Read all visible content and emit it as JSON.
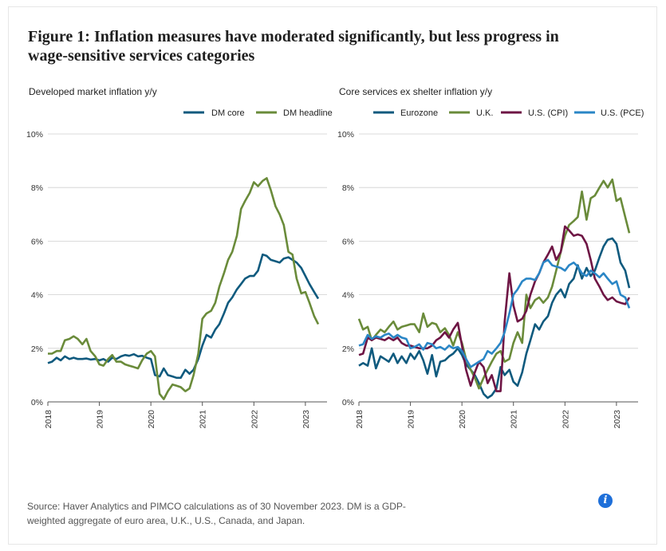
{
  "figure": {
    "title": "Figure 1: Inflation measures have moderated significantly, but less progress in wage-sensitive services categories",
    "source": "Source: Haver Analytics and PIMCO calculations as of 30 November 2023. DM is a GDP-weighted aggregate of euro area, U.K., U.S., Canada, and Japan.",
    "info_icon": "info-icon",
    "info_glyph": "i"
  },
  "chart_data": [
    {
      "type": "line",
      "title": "Developed market inflation y/y",
      "ylim": [
        0,
        10
      ],
      "yticks": [
        0,
        2,
        4,
        6,
        8,
        10
      ],
      "ytick_labels": [
        "0%",
        "2%",
        "4%",
        "6%",
        "8%",
        "10%"
      ],
      "xticks": [
        2018,
        2019,
        2020,
        2021,
        2022,
        2023
      ],
      "xtick_labels": [
        "2018",
        "2019",
        "2020",
        "2021",
        "2022",
        "2023"
      ],
      "xlim": [
        2018,
        2023.42
      ],
      "grid": true,
      "legend": "top-right",
      "series": [
        {
          "name": "DM core",
          "color": "#0f5a7e",
          "x": [
            2018.0,
            2018.08,
            2018.17,
            2018.25,
            2018.33,
            2018.42,
            2018.5,
            2018.58,
            2018.67,
            2018.75,
            2018.83,
            2018.92,
            2019.0,
            2019.08,
            2019.17,
            2019.25,
            2019.33,
            2019.42,
            2019.5,
            2019.58,
            2019.67,
            2019.75,
            2019.83,
            2019.92,
            2020.0,
            2020.08,
            2020.17,
            2020.25,
            2020.33,
            2020.42,
            2020.5,
            2020.58,
            2020.67,
            2020.75,
            2020.83,
            2020.92,
            2021.0,
            2021.08,
            2021.17,
            2021.25,
            2021.33,
            2021.42,
            2021.5,
            2021.58,
            2021.67,
            2021.75,
            2021.83,
            2021.92,
            2022.0,
            2022.08,
            2022.17,
            2022.25,
            2022.33,
            2022.42,
            2022.5,
            2022.58,
            2022.67,
            2022.75,
            2022.83,
            2022.92,
            2023.0,
            2023.08,
            2023.17,
            2023.25
          ],
          "y": [
            1.45,
            1.5,
            1.65,
            1.55,
            1.7,
            1.6,
            1.65,
            1.6,
            1.6,
            1.62,
            1.58,
            1.6,
            1.55,
            1.6,
            1.5,
            1.65,
            1.6,
            1.7,
            1.75,
            1.72,
            1.78,
            1.7,
            1.72,
            1.65,
            1.6,
            1.0,
            0.95,
            1.25,
            1.0,
            0.95,
            0.9,
            0.9,
            1.2,
            1.05,
            1.2,
            1.6,
            2.1,
            2.5,
            2.4,
            2.7,
            2.9,
            3.3,
            3.7,
            3.9,
            4.2,
            4.4,
            4.6,
            4.7,
            4.7,
            4.9,
            5.5,
            5.45,
            5.3,
            5.25,
            5.2,
            5.35,
            5.4,
            5.3,
            5.2,
            5.0,
            4.7,
            4.4,
            4.1,
            3.85
          ]
        },
        {
          "name": "DM headline",
          "color": "#6a8b3a",
          "x": [
            2018.0,
            2018.08,
            2018.17,
            2018.25,
            2018.33,
            2018.42,
            2018.5,
            2018.58,
            2018.67,
            2018.75,
            2018.83,
            2018.92,
            2019.0,
            2019.08,
            2019.17,
            2019.25,
            2019.33,
            2019.42,
            2019.5,
            2019.58,
            2019.67,
            2019.75,
            2019.83,
            2019.92,
            2020.0,
            2020.08,
            2020.17,
            2020.25,
            2020.33,
            2020.42,
            2020.5,
            2020.58,
            2020.67,
            2020.75,
            2020.83,
            2020.92,
            2021.0,
            2021.08,
            2021.17,
            2021.25,
            2021.33,
            2021.42,
            2021.5,
            2021.58,
            2021.67,
            2021.75,
            2021.83,
            2021.92,
            2022.0,
            2022.08,
            2022.17,
            2022.25,
            2022.33,
            2022.42,
            2022.5,
            2022.58,
            2022.67,
            2022.75,
            2022.83,
            2022.92,
            2023.0,
            2023.08,
            2023.17,
            2023.25
          ],
          "y": [
            1.8,
            1.8,
            1.9,
            1.9,
            2.3,
            2.35,
            2.45,
            2.35,
            2.15,
            2.35,
            1.9,
            1.7,
            1.4,
            1.35,
            1.6,
            1.75,
            1.5,
            1.5,
            1.4,
            1.35,
            1.3,
            1.25,
            1.55,
            1.8,
            1.9,
            1.7,
            0.3,
            0.1,
            0.4,
            0.65,
            0.6,
            0.55,
            0.4,
            0.5,
            1.0,
            1.8,
            3.1,
            3.3,
            3.4,
            3.7,
            4.3,
            4.8,
            5.3,
            5.6,
            6.2,
            7.2,
            7.5,
            7.8,
            8.2,
            8.05,
            8.25,
            8.35,
            7.9,
            7.3,
            7.0,
            6.6,
            5.6,
            5.5,
            4.6,
            4.05,
            4.1,
            3.7,
            3.2,
            2.9
          ]
        }
      ]
    },
    {
      "type": "line",
      "title": "Core services ex shelter inflation y/y",
      "ylim": [
        0,
        10
      ],
      "yticks": [
        0,
        2,
        4,
        6,
        8,
        10
      ],
      "ytick_labels": [
        "0%",
        "2%",
        "4%",
        "6%",
        "8%",
        "10%"
      ],
      "xticks": [
        2018,
        2019,
        2020,
        2021,
        2022,
        2023
      ],
      "xtick_labels": [
        "2018",
        "2019",
        "2020",
        "2021",
        "2022",
        "2023"
      ],
      "xlim": [
        2018,
        2023.42
      ],
      "grid": true,
      "legend": "top-right",
      "series": [
        {
          "name": "Eurozone",
          "color": "#0f5a7e",
          "x": [
            2018.0,
            2018.08,
            2018.17,
            2018.25,
            2018.33,
            2018.42,
            2018.5,
            2018.58,
            2018.67,
            2018.75,
            2018.83,
            2018.92,
            2019.0,
            2019.08,
            2019.17,
            2019.25,
            2019.33,
            2019.42,
            2019.5,
            2019.58,
            2019.67,
            2019.75,
            2019.83,
            2019.92,
            2020.0,
            2020.08,
            2020.17,
            2020.25,
            2020.33,
            2020.42,
            2020.5,
            2020.58,
            2020.67,
            2020.75,
            2020.83,
            2020.92,
            2021.0,
            2021.08,
            2021.17,
            2021.25,
            2021.33,
            2021.42,
            2021.5,
            2021.58,
            2021.67,
            2021.75,
            2021.83,
            2021.92,
            2022.0,
            2022.08,
            2022.17,
            2022.25,
            2022.33,
            2022.42,
            2022.5,
            2022.58,
            2022.67,
            2022.75,
            2022.83,
            2022.92,
            2023.0,
            2023.08,
            2023.17,
            2023.25
          ],
          "y": [
            1.35,
            1.45,
            1.35,
            2.0,
            1.25,
            1.7,
            1.6,
            1.5,
            1.8,
            1.45,
            1.7,
            1.45,
            1.8,
            1.6,
            1.9,
            1.55,
            1.05,
            1.75,
            0.95,
            1.5,
            1.55,
            1.7,
            1.8,
            2.0,
            1.75,
            1.4,
            1.2,
            1.0,
            0.7,
            0.3,
            0.15,
            0.25,
            0.5,
            1.3,
            1.0,
            1.2,
            0.75,
            0.6,
            1.1,
            1.8,
            2.3,
            2.9,
            2.7,
            3.0,
            3.2,
            3.7,
            4.0,
            4.2,
            3.9,
            4.4,
            4.6,
            5.1,
            4.6,
            5.0,
            4.7,
            4.9,
            5.4,
            5.8,
            6.05,
            6.1,
            5.9,
            5.2,
            4.9,
            4.25
          ]
        },
        {
          "name": "U.K.",
          "color": "#6a8b3a",
          "x": [
            2018.0,
            2018.08,
            2018.17,
            2018.25,
            2018.33,
            2018.42,
            2018.5,
            2018.58,
            2018.67,
            2018.75,
            2018.83,
            2018.92,
            2019.0,
            2019.08,
            2019.17,
            2019.25,
            2019.33,
            2019.42,
            2019.5,
            2019.58,
            2019.67,
            2019.75,
            2019.83,
            2019.92,
            2020.0,
            2020.08,
            2020.17,
            2020.25,
            2020.33,
            2020.42,
            2020.5,
            2020.58,
            2020.67,
            2020.75,
            2020.83,
            2020.92,
            2021.0,
            2021.08,
            2021.17,
            2021.25,
            2021.33,
            2021.42,
            2021.5,
            2021.58,
            2021.67,
            2021.75,
            2021.83,
            2021.92,
            2022.0,
            2022.08,
            2022.17,
            2022.25,
            2022.33,
            2022.42,
            2022.5,
            2022.58,
            2022.67,
            2022.75,
            2022.83,
            2022.92,
            2023.0,
            2023.08,
            2023.17,
            2023.25
          ],
          "y": [
            3.1,
            2.7,
            2.8,
            2.3,
            2.5,
            2.7,
            2.6,
            2.8,
            3.0,
            2.7,
            2.8,
            2.85,
            2.9,
            2.9,
            2.6,
            3.3,
            2.8,
            2.95,
            2.9,
            2.6,
            2.75,
            2.5,
            2.1,
            2.6,
            2.2,
            1.6,
            1.2,
            0.9,
            0.5,
            0.9,
            1.2,
            1.5,
            1.8,
            1.9,
            1.5,
            1.6,
            2.2,
            2.6,
            2.2,
            4.0,
            3.5,
            3.8,
            3.9,
            3.7,
            3.9,
            4.3,
            4.9,
            5.6,
            6.2,
            6.6,
            6.75,
            6.9,
            7.85,
            6.8,
            7.6,
            7.7,
            8.0,
            8.25,
            8.0,
            8.3,
            7.5,
            7.6,
            6.9,
            6.3
          ]
        },
        {
          "name": "U.S. (CPI)",
          "color": "#6e1544",
          "x": [
            2018.0,
            2018.08,
            2018.17,
            2018.25,
            2018.33,
            2018.42,
            2018.5,
            2018.58,
            2018.67,
            2018.75,
            2018.83,
            2018.92,
            2019.0,
            2019.08,
            2019.17,
            2019.25,
            2019.33,
            2019.42,
            2019.5,
            2019.58,
            2019.67,
            2019.75,
            2019.83,
            2019.92,
            2020.0,
            2020.08,
            2020.17,
            2020.25,
            2020.33,
            2020.42,
            2020.5,
            2020.58,
            2020.67,
            2020.75,
            2020.83,
            2020.92,
            2021.0,
            2021.08,
            2021.17,
            2021.25,
            2021.33,
            2021.42,
            2021.5,
            2021.58,
            2021.67,
            2021.75,
            2021.83,
            2021.92,
            2022.0,
            2022.08,
            2022.17,
            2022.25,
            2022.33,
            2022.42,
            2022.5,
            2022.58,
            2022.67,
            2022.75,
            2022.83,
            2022.92,
            2023.0,
            2023.08,
            2023.17,
            2023.25
          ],
          "y": [
            1.75,
            1.8,
            2.4,
            2.3,
            2.4,
            2.35,
            2.3,
            2.4,
            2.3,
            2.4,
            2.2,
            2.1,
            2.1,
            2.05,
            2.0,
            2.0,
            2.0,
            2.1,
            2.3,
            2.4,
            2.6,
            2.4,
            2.7,
            2.95,
            2.1,
            1.2,
            0.6,
            1.1,
            1.5,
            1.3,
            0.7,
            1.0,
            0.4,
            0.4,
            3.0,
            4.8,
            3.6,
            3.0,
            3.1,
            3.4,
            4.0,
            4.5,
            4.8,
            5.2,
            5.5,
            5.8,
            5.3,
            5.6,
            6.55,
            6.4,
            6.2,
            6.25,
            6.2,
            5.9,
            5.3,
            4.6,
            4.3,
            4.0,
            3.8,
            3.9,
            3.75,
            3.7,
            3.65,
            3.9
          ]
        },
        {
          "name": "U.S. (PCE)",
          "color": "#2a86c6",
          "x": [
            2018.0,
            2018.08,
            2018.17,
            2018.25,
            2018.33,
            2018.42,
            2018.5,
            2018.58,
            2018.67,
            2018.75,
            2018.83,
            2018.92,
            2019.0,
            2019.08,
            2019.17,
            2019.25,
            2019.33,
            2019.42,
            2019.5,
            2019.58,
            2019.67,
            2019.75,
            2019.83,
            2019.92,
            2020.0,
            2020.08,
            2020.17,
            2020.25,
            2020.33,
            2020.42,
            2020.5,
            2020.58,
            2020.67,
            2020.75,
            2020.83,
            2020.92,
            2021.0,
            2021.08,
            2021.17,
            2021.25,
            2021.33,
            2021.42,
            2021.5,
            2021.58,
            2021.67,
            2021.75,
            2021.83,
            2021.92,
            2022.0,
            2022.08,
            2022.17,
            2022.25,
            2022.33,
            2022.42,
            2022.5,
            2022.58,
            2022.67,
            2022.75,
            2022.83,
            2022.92,
            2023.0,
            2023.08,
            2023.17,
            2023.25
          ],
          "y": [
            2.1,
            2.15,
            2.5,
            2.35,
            2.45,
            2.4,
            2.5,
            2.55,
            2.4,
            2.5,
            2.4,
            2.35,
            2.0,
            2.05,
            2.15,
            1.95,
            2.2,
            2.15,
            2.0,
            2.05,
            1.95,
            2.1,
            2.0,
            2.05,
            1.9,
            1.6,
            1.3,
            1.4,
            1.5,
            1.6,
            1.9,
            1.8,
            2.0,
            2.2,
            2.6,
            3.3,
            4.0,
            4.2,
            4.5,
            4.6,
            4.6,
            4.55,
            4.8,
            5.2,
            5.3,
            5.1,
            5.05,
            5.0,
            4.9,
            5.1,
            5.2,
            5.05,
            4.8,
            4.7,
            4.9,
            4.8,
            4.65,
            4.8,
            4.6,
            4.4,
            4.5,
            4.0,
            3.9,
            3.5
          ]
        }
      ]
    }
  ]
}
